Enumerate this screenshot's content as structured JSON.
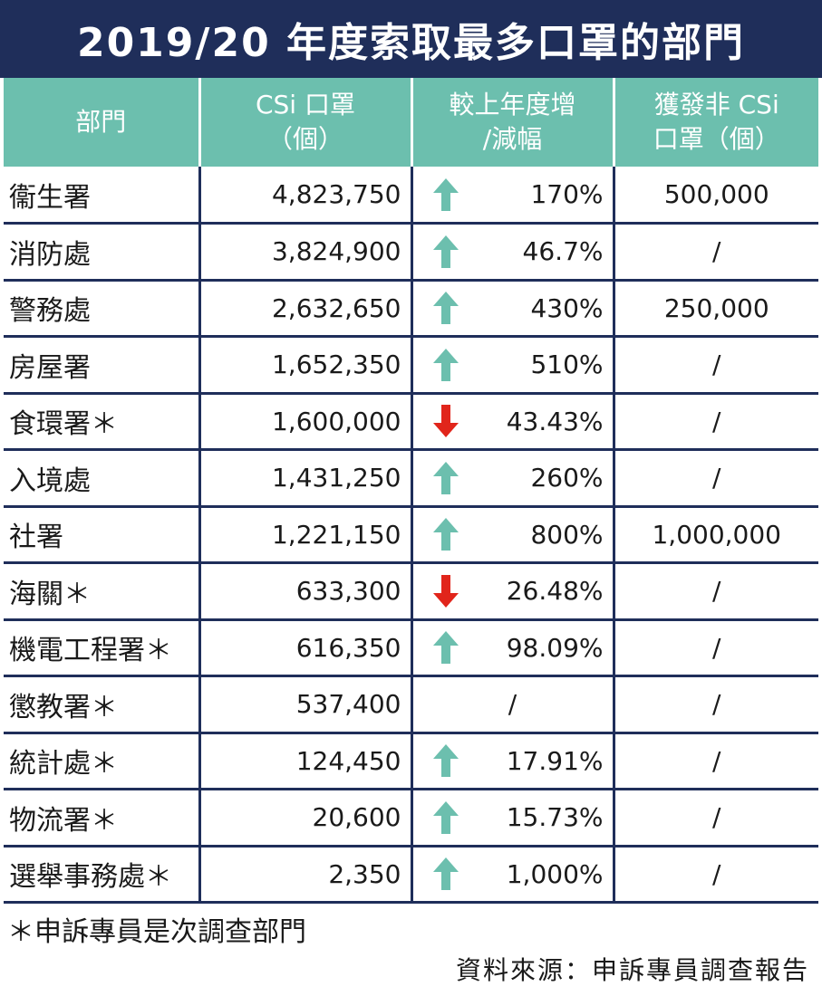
{
  "title": "2019/20 年度索取最多口罩的部門",
  "headers": {
    "dept": "部門",
    "csi_line1": "CSi 口罩",
    "csi_line2": "（個）",
    "change_line1": "較上年度增",
    "change_line2": "/減幅",
    "noncsi_line1": "獲發非 CSi",
    "noncsi_line2": "口罩（個）"
  },
  "colors": {
    "title_bg": "#1f2e5a",
    "header_bg": "#6cbfae",
    "up_arrow": "#6cbfae",
    "down_arrow": "#e1251b"
  },
  "rows": [
    {
      "dept": "衞生署",
      "csi": "4,823,750",
      "direction": "up",
      "change": "170%",
      "non_csi": "500,000"
    },
    {
      "dept": "消防處",
      "csi": "3,824,900",
      "direction": "up",
      "change": "46.7%",
      "non_csi": "/"
    },
    {
      "dept": "警務處",
      "csi": "2,632,650",
      "direction": "up",
      "change": "430%",
      "non_csi": "250,000"
    },
    {
      "dept": "房屋署",
      "csi": "1,652,350",
      "direction": "up",
      "change": "510%",
      "non_csi": "/"
    },
    {
      "dept": "食環署＊",
      "csi": "1,600,000",
      "direction": "down",
      "change": "43.43%",
      "non_csi": "/"
    },
    {
      "dept": "入境處",
      "csi": "1,431,250",
      "direction": "up",
      "change": "260%",
      "non_csi": "/"
    },
    {
      "dept": "社署",
      "csi": "1,221,150",
      "direction": "up",
      "change": "800%",
      "non_csi": "1,000,000"
    },
    {
      "dept": "海關＊",
      "csi": "633,300",
      "direction": "down",
      "change": "26.48%",
      "non_csi": "/"
    },
    {
      "dept": "機電工程署＊",
      "csi": "616,350",
      "direction": "up",
      "change": "98.09%",
      "non_csi": "/"
    },
    {
      "dept": "懲教署＊",
      "csi": "537,400",
      "direction": "none",
      "change": "/",
      "non_csi": "/"
    },
    {
      "dept": "統計處＊",
      "csi": "124,450",
      "direction": "up",
      "change": "17.91%",
      "non_csi": "/"
    },
    {
      "dept": "物流署＊",
      "csi": "20,600",
      "direction": "up",
      "change": "15.73%",
      "non_csi": "/"
    },
    {
      "dept": "選舉事務處＊",
      "csi": "2,350",
      "direction": "up",
      "change": "1,000%",
      "non_csi": "/"
    }
  ],
  "footnote": "＊申訴專員是次調查部門",
  "source": "資料來源：申訴專員調查報告"
}
